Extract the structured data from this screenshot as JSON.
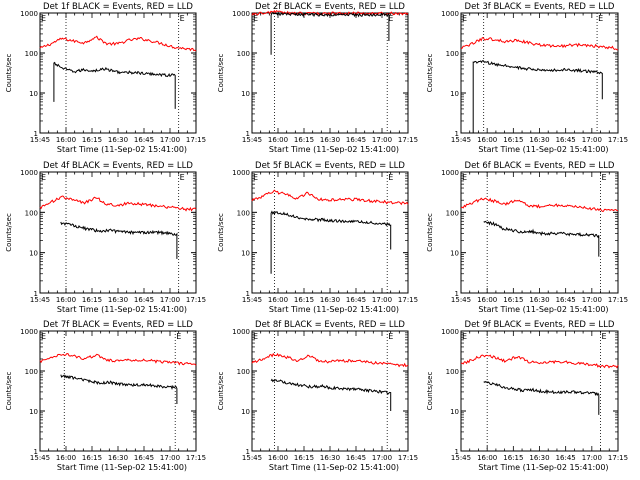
{
  "chart_data": [
    {
      "type": "line",
      "title": "Det 1f BLACK = Events, RED = LLD",
      "xlabel": "Start Time (11-Sep-02 15:41:00)",
      "ylabel": "Counts/sec",
      "yscale": "log",
      "ylim": [
        1,
        1000
      ],
      "xlim": [
        "15:45",
        "17:15"
      ],
      "x_ticks": [
        "15:45",
        "16:00",
        "16:15",
        "16:30",
        "16:45",
        "17:00",
        "17:15"
      ],
      "y_ticks": [
        "1",
        "10",
        "100",
        "1000"
      ],
      "markers": [
        "16:00",
        "17:05"
      ],
      "corner_marks": [
        "E",
        "E"
      ],
      "series": [
        {
          "color": "#ff0000",
          "start": "15:45",
          "end": "17:15",
          "values": [
            130,
            170,
            230,
            200,
            180,
            250,
            170,
            170,
            210,
            230,
            200,
            170,
            140,
            130,
            120
          ]
        },
        {
          "color": "#000000",
          "start": "15:53",
          "end": "17:03",
          "values": [
            55,
            40,
            34,
            38,
            36,
            40,
            35,
            32,
            33,
            30,
            30,
            28,
            28
          ],
          "drop": {
            "start": 6,
            "end": 4
          }
        }
      ]
    },
    {
      "type": "line",
      "title": "Det 2f BLACK = Events, RED = LLD",
      "xlabel": "Start Time (11-Sep-02 15:41:00)",
      "ylabel": "Counts/sec",
      "yscale": "log",
      "ylim": [
        1,
        1000
      ],
      "xlim": [
        "15:45",
        "17:15"
      ],
      "x_ticks": [
        "15:45",
        "16:00",
        "16:15",
        "16:30",
        "16:45",
        "17:00",
        "17:15"
      ],
      "y_ticks": [
        "1",
        "10",
        "100",
        "1000"
      ],
      "markers": [
        "15:58",
        "17:03"
      ],
      "corner_marks": [
        "E",
        "E"
      ],
      "series": [
        {
          "color": "#ff0000",
          "start": "15:45",
          "end": "17:15",
          "values": [
            950,
            980,
            1100,
            1000,
            980,
            980,
            980,
            980,
            980,
            980,
            980,
            980,
            980,
            980,
            980
          ]
        },
        {
          "color": "#000000",
          "start": "15:56",
          "end": "17:04",
          "values": [
            950,
            950,
            920,
            920,
            910,
            910,
            900,
            900,
            900,
            900,
            900,
            900,
            900
          ],
          "drop": {
            "start": 90,
            "end": 200
          }
        }
      ]
    },
    {
      "type": "line",
      "title": "Det 3f BLACK = Events, RED = LLD",
      "xlabel": "Start Time (11-Sep-02 15:41:00)",
      "ylabel": "Counts/sec",
      "yscale": "log",
      "ylim": [
        1,
        1000
      ],
      "xlim": [
        "15:45",
        "17:15"
      ],
      "x_ticks": [
        "15:45",
        "16:00",
        "16:15",
        "16:30",
        "16:45",
        "17:00",
        "17:15"
      ],
      "y_ticks": [
        "1",
        "10",
        "100",
        "1000"
      ],
      "markers": [
        "15:58",
        "17:03"
      ],
      "corner_marks": [
        "E",
        "E"
      ],
      "series": [
        {
          "color": "#ff0000",
          "start": "15:45",
          "end": "17:15",
          "values": [
            130,
            170,
            230,
            220,
            190,
            210,
            180,
            160,
            150,
            150,
            160,
            160,
            150,
            140,
            130
          ]
        },
        {
          "color": "#000000",
          "start": "15:52",
          "end": "17:06",
          "values": [
            60,
            60,
            52,
            48,
            44,
            40,
            38,
            36,
            38,
            38,
            36,
            34,
            32
          ],
          "drop": {
            "start": 1,
            "end": 7
          }
        }
      ]
    },
    {
      "type": "line",
      "title": "Det 4f BLACK = Events, RED = LLD",
      "xlabel": "Start Time (11-Sep-02 15:41:00)",
      "ylabel": "Counts/sec",
      "yscale": "log",
      "ylim": [
        1,
        1000
      ],
      "xlim": [
        "15:45",
        "17:15"
      ],
      "x_ticks": [
        "15:45",
        "16:00",
        "16:15",
        "16:30",
        "16:45",
        "17:00",
        "17:15"
      ],
      "y_ticks": [
        "1",
        "10",
        "100",
        "1000"
      ],
      "markers": [
        "16:00",
        "17:05"
      ],
      "corner_marks": [
        "E",
        "E"
      ],
      "series": [
        {
          "color": "#ff0000",
          "start": "15:45",
          "end": "17:15",
          "values": [
            130,
            180,
            240,
            200,
            170,
            230,
            160,
            150,
            170,
            160,
            150,
            140,
            130,
            120,
            120
          ]
        },
        {
          "color": "#000000",
          "start": "15:57",
          "end": "17:04",
          "values": [
            55,
            50,
            42,
            38,
            34,
            36,
            33,
            32,
            32,
            32,
            32,
            30,
            28
          ],
          "drop": {
            "start": null,
            "end": 7
          }
        }
      ]
    },
    {
      "type": "line",
      "title": "Det 5f BLACK = Events, RED = LLD",
      "xlabel": "Start Time (11-Sep-02 15:41:00)",
      "ylabel": "Counts/sec",
      "yscale": "log",
      "ylim": [
        1,
        1000
      ],
      "xlim": [
        "15:45",
        "17:15"
      ],
      "x_ticks": [
        "15:45",
        "16:00",
        "16:15",
        "16:30",
        "16:45",
        "17:00",
        "17:15"
      ],
      "y_ticks": [
        "1",
        "10",
        "100",
        "1000"
      ],
      "markers": [
        "15:58",
        "17:03"
      ],
      "corner_marks": [
        "E",
        "E"
      ],
      "series": [
        {
          "color": "#ff0000",
          "start": "15:45",
          "end": "17:15",
          "values": [
            200,
            250,
            330,
            280,
            220,
            300,
            210,
            200,
            210,
            210,
            200,
            190,
            180,
            170,
            170
          ]
        },
        {
          "color": "#000000",
          "start": "15:56",
          "end": "17:05",
          "values": [
            100,
            95,
            85,
            72,
            66,
            66,
            62,
            60,
            60,
            58,
            55,
            52,
            50
          ],
          "drop": {
            "start": 3,
            "end": 12
          }
        }
      ]
    },
    {
      "type": "line",
      "title": "Det 6f BLACK = Events, RED = LLD",
      "xlabel": "Start Time (11-Sep-02 15:41:00)",
      "ylabel": "Counts/sec",
      "yscale": "log",
      "ylim": [
        1,
        1000
      ],
      "xlim": [
        "15:45",
        "17:15"
      ],
      "x_ticks": [
        "15:45",
        "16:00",
        "16:15",
        "16:30",
        "16:45",
        "17:00",
        "17:15"
      ],
      "y_ticks": [
        "1",
        "10",
        "100",
        "1000"
      ],
      "markers": [
        "16:00",
        "17:05"
      ],
      "corner_marks": [
        "E",
        "E"
      ],
      "series": [
        {
          "color": "#ff0000",
          "start": "15:45",
          "end": "17:15",
          "values": [
            130,
            170,
            220,
            190,
            160,
            210,
            150,
            140,
            150,
            150,
            140,
            130,
            120,
            110,
            110
          ]
        },
        {
          "color": "#000000",
          "start": "15:58",
          "end": "17:04",
          "values": [
            58,
            52,
            40,
            36,
            32,
            34,
            30,
            30,
            30,
            29,
            28,
            28,
            26
          ],
          "drop": {
            "start": null,
            "end": 8
          }
        }
      ]
    },
    {
      "type": "line",
      "title": "Det 7f BLACK = Events, RED = LLD",
      "xlabel": "Start Time (11-Sep-02 15:41:00)",
      "ylabel": "Counts/sec",
      "yscale": "log",
      "ylim": [
        1,
        1000
      ],
      "xlim": [
        "15:45",
        "17:15"
      ],
      "x_ticks": [
        "15:45",
        "16:00",
        "16:15",
        "16:30",
        "16:45",
        "17:00",
        "17:15"
      ],
      "y_ticks": [
        "1",
        "10",
        "100",
        "1000"
      ],
      "markers": [
        "15:59",
        "17:03"
      ],
      "corner_marks": [
        "E",
        "E"
      ],
      "series": [
        {
          "color": "#ff0000",
          "start": "15:45",
          "end": "17:15",
          "values": [
            170,
            210,
            270,
            240,
            200,
            250,
            190,
            180,
            190,
            190,
            180,
            170,
            160,
            150,
            150
          ]
        },
        {
          "color": "#000000",
          "start": "15:57",
          "end": "17:04",
          "values": [
            75,
            70,
            62,
            55,
            50,
            52,
            48,
            46,
            45,
            44,
            42,
            40,
            38
          ],
          "drop": {
            "start": null,
            "end": 15
          }
        }
      ]
    },
    {
      "type": "line",
      "title": "Det 8f BLACK = Events, RED = LLD",
      "xlabel": "Start Time (11-Sep-02 15:41:00)",
      "ylabel": "Counts/sec",
      "yscale": "log",
      "ylim": [
        1,
        1000
      ],
      "xlim": [
        "15:45",
        "17:15"
      ],
      "x_ticks": [
        "15:45",
        "16:00",
        "16:15",
        "16:30",
        "16:45",
        "17:00",
        "17:15"
      ],
      "y_ticks": [
        "1",
        "10",
        "100",
        "1000"
      ],
      "markers": [
        "15:58",
        "17:03"
      ],
      "corner_marks": [
        "E",
        "E"
      ],
      "series": [
        {
          "color": "#ff0000",
          "start": "15:45",
          "end": "17:15",
          "values": [
            160,
            200,
            260,
            230,
            180,
            240,
            180,
            170,
            180,
            180,
            170,
            160,
            150,
            140,
            140
          ]
        },
        {
          "color": "#000000",
          "start": "15:56",
          "end": "17:05",
          "values": [
            58,
            55,
            48,
            44,
            40,
            42,
            38,
            36,
            36,
            34,
            32,
            30,
            28
          ],
          "drop": {
            "start": null,
            "end": 10
          }
        }
      ]
    },
    {
      "type": "line",
      "title": "Det 9f BLACK = Events, RED = LLD",
      "xlabel": "Start Time (11-Sep-02 15:41:00)",
      "ylabel": "Counts/sec",
      "yscale": "log",
      "ylim": [
        1,
        1000
      ],
      "xlim": [
        "15:45",
        "17:15"
      ],
      "x_ticks": [
        "15:45",
        "16:00",
        "16:15",
        "16:30",
        "16:45",
        "17:00",
        "17:15"
      ],
      "y_ticks": [
        "1",
        "10",
        "100",
        "1000"
      ],
      "markers": [
        "16:00",
        "17:05"
      ],
      "corner_marks": [
        "E",
        "E"
      ],
      "series": [
        {
          "color": "#ff0000",
          "start": "15:45",
          "end": "17:15",
          "values": [
            150,
            190,
            250,
            220,
            170,
            230,
            170,
            160,
            170,
            170,
            160,
            150,
            140,
            130,
            130
          ]
        },
        {
          "color": "#000000",
          "start": "15:58",
          "end": "17:04",
          "values": [
            52,
            48,
            40,
            36,
            33,
            34,
            31,
            30,
            30,
            30,
            29,
            28,
            27
          ],
          "drop": {
            "start": null,
            "end": 8
          }
        }
      ]
    }
  ]
}
